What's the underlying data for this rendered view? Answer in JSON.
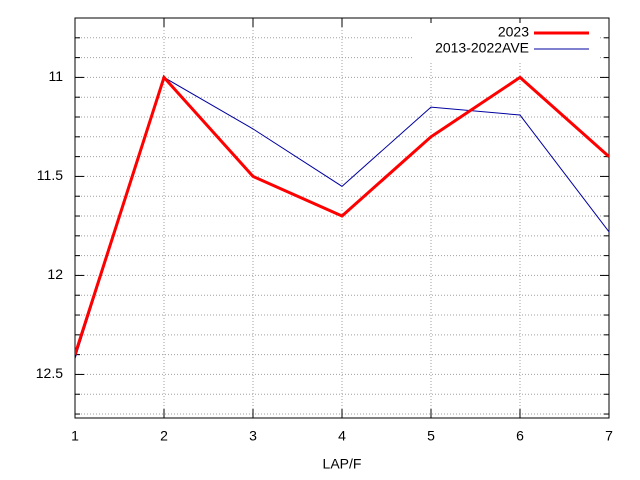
{
  "chart_data": {
    "type": "line",
    "x_label": "LAP/F",
    "x": [
      1,
      2,
      3,
      4,
      5,
      6,
      7
    ],
    "xlim": [
      1,
      7
    ],
    "xticks": [
      1,
      2,
      3,
      4,
      5,
      6,
      7
    ],
    "ylim": [
      10.7,
      12.72
    ],
    "y_reversed": true,
    "yticks": [
      11,
      11.5,
      12,
      12.5
    ],
    "yminor_ticks": [
      10.8,
      10.9,
      11.1,
      11.2,
      11.3,
      11.4,
      11.6,
      11.7,
      11.8,
      11.9,
      12.1,
      12.2,
      12.3,
      12.4,
      12.6,
      12.7
    ],
    "grid": true,
    "legend": "top-right",
    "series": [
      {
        "name": "2023",
        "color": "#ff0000",
        "width": 3,
        "values": [
          12.4,
          11.0,
          11.5,
          11.7,
          11.3,
          11.0,
          11.4
        ]
      },
      {
        "name": "2013-2022AVE",
        "color": "#0000a0",
        "width": 1,
        "values": [
          12.42,
          11.0,
          11.26,
          11.55,
          11.15,
          11.19,
          11.78
        ]
      }
    ]
  }
}
